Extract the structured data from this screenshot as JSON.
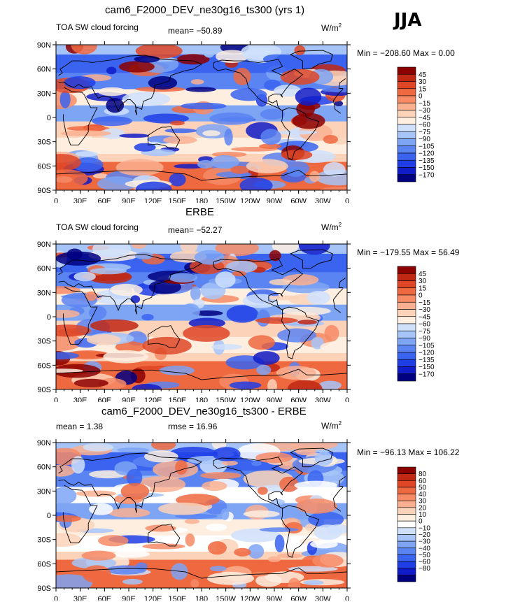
{
  "season": "JJA",
  "palettes": {
    "main": [
      "#000080",
      "#0f1cc8",
      "#1f3ee6",
      "#3a64f0",
      "#5a84f2",
      "#7ea4f4",
      "#a6c4f8",
      "#cfe0fb",
      "#fdeee0",
      "#fcd2b8",
      "#fab090",
      "#f68b66",
      "#ee6840",
      "#de4626",
      "#c02814",
      "#8c0000"
    ],
    "diff": [
      "#000080",
      "#0f1cc8",
      "#1f3ee6",
      "#3a64f0",
      "#5a84f2",
      "#7ea4f4",
      "#a6c4f8",
      "#cfe0fb",
      "#ffffff",
      "#fdeee0",
      "#fcd2b8",
      "#fab090",
      "#f68b66",
      "#ee6840",
      "#de4626",
      "#c02814",
      "#8c0000"
    ]
  },
  "panels": [
    {
      "title": "cam6_F2000_DEV_ne30g16_ts300 (yrs 1)",
      "left_text": "TOA SW cloud forcing",
      "mid_text": "mean= −50.89",
      "units": "W/m",
      "units_sup": "2",
      "minmax": "Min = −208.60 Max =    0.00",
      "colorbar_labels": [
        "45",
        "30",
        "15",
        "0",
        "−15",
        "−30",
        "−45",
        "−60",
        "−75",
        "−90",
        "−105",
        "−120",
        "−135",
        "−150",
        "−170"
      ],
      "palette": "main",
      "seed": 11
    },
    {
      "title": "ERBE",
      "left_text": "TOA SW cloud forcing",
      "mid_text": "mean= −52.27",
      "units": "W/m",
      "units_sup": "2",
      "minmax": "Min = −179.55 Max =   56.49",
      "colorbar_labels": [
        "45",
        "30",
        "15",
        "0",
        "−15",
        "−30",
        "−45",
        "−60",
        "−75",
        "−90",
        "−105",
        "−120",
        "−135",
        "−150",
        "−170"
      ],
      "palette": "main",
      "seed": 23
    },
    {
      "title": "cam6_F2000_DEV_ne30g16_ts300 - ERBE",
      "left_text": "mean =    1.38",
      "mid_text": "rmse =   16.96",
      "units": "W/m",
      "units_sup": "2",
      "minmax": "Min = −96.13 Max = 106.22",
      "colorbar_labels": [
        "80",
        "60",
        "50",
        "40",
        "30",
        "20",
        "10",
        "0",
        "−10",
        "−20",
        "−30",
        "−40",
        "−50",
        "−60",
        "−80"
      ],
      "palette": "diff",
      "seed": 37
    }
  ],
  "x_ticks": [
    "0",
    "30E",
    "60E",
    "90E",
    "120E",
    "150E",
    "180",
    "150W",
    "120W",
    "90W",
    "60W",
    "30W",
    "0"
  ],
  "y_ticks": [
    "90N",
    "60N",
    "30N",
    "0",
    "30S",
    "60S",
    "90S"
  ]
}
